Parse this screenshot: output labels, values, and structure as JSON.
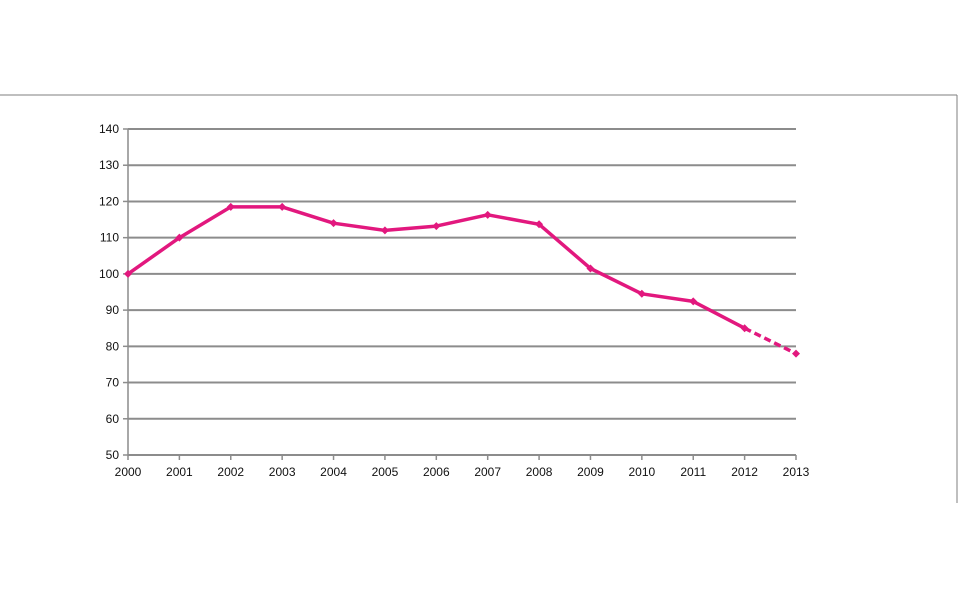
{
  "chart_data": {
    "type": "line",
    "title": "",
    "xlabel": "",
    "ylabel": "",
    "categories": [
      "2000",
      "2001",
      "2002",
      "2003",
      "2004",
      "2005",
      "2006",
      "2007",
      "2008",
      "2009",
      "2010",
      "2011",
      "2012",
      "2013"
    ],
    "series": [
      {
        "values": [
          100,
          110,
          118.5,
          118.5,
          114,
          112,
          113.2,
          116.3,
          113.7,
          101.5,
          94.5,
          92.4,
          85,
          78
        ],
        "color": "#e2187e",
        "dashed_from_category": "2012"
      }
    ],
    "yticks": [
      "50",
      "60",
      "70",
      "80",
      "90",
      "100",
      "110",
      "120",
      "130",
      "140"
    ],
    "ylim": [
      50,
      140
    ],
    "grid": true,
    "legend": "none"
  },
  "colors": {
    "line": "#e2187e",
    "grid": "#8c8c8c",
    "frame": "#7f7f7f"
  }
}
